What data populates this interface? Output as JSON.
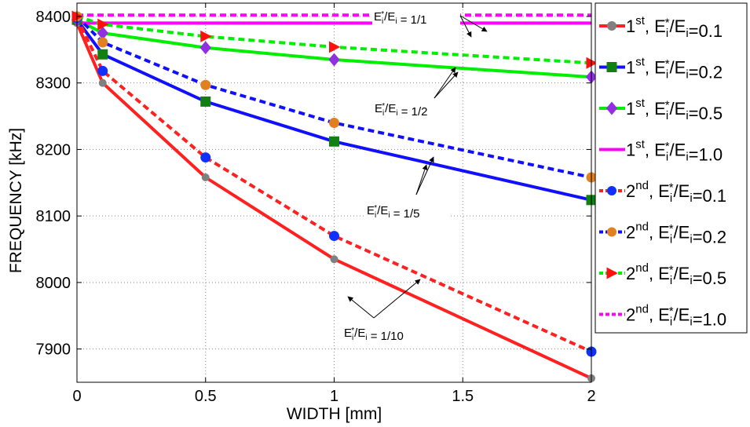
{
  "chart_data": {
    "type": "line",
    "xlabel": "WIDTH [mm]",
    "ylabel": "FREQUENCY [kHz]",
    "xlim": [
      0,
      2
    ],
    "ylim": [
      7850,
      8420
    ],
    "x_ticks": [
      "0",
      "0.5",
      "1",
      "1.5",
      "2"
    ],
    "y_ticks": [
      "7900",
      "8000",
      "8100",
      "8200",
      "8300",
      "8400"
    ],
    "grid": "dotted",
    "legend_position": "outside-right",
    "x": [
      0,
      0.1,
      0.5,
      1,
      2
    ],
    "series": [
      {
        "mode": "1",
        "mode_sup": "st",
        "ratio": "0.1",
        "name": "1st, Ei*/Ei=0.1",
        "values": [
          8390,
          8300,
          8158,
          8035,
          7856
        ],
        "color": "#ff2020",
        "dash": "solid",
        "marker": "circle",
        "marker_color": "#808080"
      },
      {
        "mode": "1",
        "mode_sup": "st",
        "ratio": "0.2",
        "name": "1st, Ei*/Ei=0.2",
        "values": [
          8395,
          8343,
          8272,
          8212,
          8124
        ],
        "color": "#1010ff",
        "dash": "solid",
        "marker": "square",
        "marker_color": "#108010"
      },
      {
        "mode": "1",
        "mode_sup": "st",
        "ratio": "0.5",
        "name": "1st, Ei*/Ei=0.5",
        "values": [
          8395,
          8375,
          8353,
          8335,
          8309
        ],
        "color": "#00ee00",
        "dash": "solid",
        "marker": "diamond",
        "marker_color": "#9030e0"
      },
      {
        "mode": "1",
        "mode_sup": "st",
        "ratio": "1.0",
        "name": "1st, Ei*/Ei=1.0",
        "values": [
          8390,
          8390,
          8390,
          8390,
          8390
        ],
        "color": "#ff00ff",
        "dash": "solid",
        "marker": "none",
        "marker_color": "#ff00ff"
      },
      {
        "mode": "2",
        "mode_sup": "nd",
        "ratio": "0.1",
        "name": "2nd, Ei*/Ei=0.1",
        "values": [
          8398,
          8318,
          8188,
          8070,
          7896
        ],
        "color": "#ff2020",
        "dash": "dashed",
        "marker": "circle",
        "marker_color": "#1030ff"
      },
      {
        "mode": "2",
        "mode_sup": "nd",
        "ratio": "0.2",
        "name": "2nd, Ei*/Ei=0.2",
        "values": [
          8400,
          8361,
          8297,
          8240,
          8158
        ],
        "color": "#1010ff",
        "dash": "dashed",
        "marker": "circle",
        "marker_color": "#e08020"
      },
      {
        "mode": "2",
        "mode_sup": "nd",
        "ratio": "0.5",
        "name": "2nd, Ei*/Ei=0.5",
        "values": [
          8400,
          8388,
          8370,
          8354,
          8330
        ],
        "color": "#00ee00",
        "dash": "dashed",
        "marker": "triangle-right",
        "marker_color": "#ff1010"
      },
      {
        "mode": "2",
        "mode_sup": "nd",
        "ratio": "1.0",
        "name": "2nd, Ei*/Ei=1.0",
        "values": [
          8402,
          8402,
          8402,
          8402,
          8402
        ],
        "color": "#ff00ff",
        "dash": "dashed",
        "marker": "none",
        "marker_color": "#ff00ff"
      }
    ],
    "annotations": [
      {
        "ratio": "1/1"
      },
      {
        "ratio": "1/2"
      },
      {
        "ratio": "1/5"
      },
      {
        "ratio": "1/10"
      }
    ]
  }
}
